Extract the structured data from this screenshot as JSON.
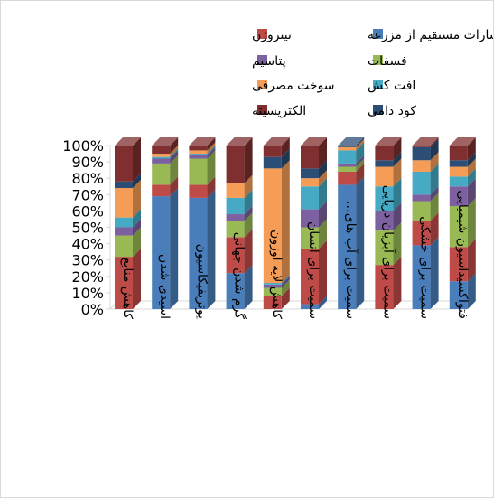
{
  "chart_data": {
    "type": "bar",
    "stacked": true,
    "percent": true,
    "three_d": true,
    "title": "",
    "xlabel": "",
    "ylabel": "",
    "ylim": [
      0,
      100
    ],
    "y_tick_labels": [
      "0%",
      "10%",
      "20%",
      "30%",
      "40%",
      "50%",
      "60%",
      "70%",
      "80%",
      "90%",
      "100%"
    ],
    "categories": [
      "کاهش منابع",
      "اسیدی شدن",
      "یوتریفیکاسیون",
      "گرم شدن جهانی",
      "کاهش لایه اوزون",
      "سمیت برای انسان",
      "سمیت برای آب های…",
      "سمیت برای آبزیان دریایی",
      "سمیت برای خشکی",
      "فتواکسیداسیون شیمیایی"
    ],
    "series": [
      {
        "name": "انتشارات مستقیم از مزرعه",
        "color": "#4a7ebb",
        "values": [
          0,
          69,
          68,
          22,
          0,
          3,
          76,
          0,
          39,
          17
        ]
      },
      {
        "name": "نیتروژن",
        "color": "#be4b48",
        "values": [
          32,
          7,
          8,
          22,
          8,
          34,
          8,
          27,
          15,
          21
        ]
      },
      {
        "name": "فسفات",
        "color": "#98b954",
        "values": [
          13,
          13,
          16,
          10,
          5,
          13,
          3,
          21,
          12,
          25
        ]
      },
      {
        "name": "پتاسیم",
        "color": "#7d60a0",
        "values": [
          5,
          3,
          2,
          4,
          2,
          11,
          2,
          12,
          4,
          12
        ]
      },
      {
        "name": "افت کش",
        "color": "#46aac5",
        "values": [
          6,
          1,
          1,
          10,
          1,
          14,
          8,
          15,
          14,
          6
        ]
      },
      {
        "name": "سوخت مصرفی",
        "color": "#f59d56",
        "values": [
          18,
          2,
          2,
          9,
          70,
          5,
          2,
          12,
          7,
          6
        ]
      },
      {
        "name": "کود دامی",
        "color": "#2c4d75",
        "values": [
          4,
          0,
          0,
          0,
          7,
          6,
          1,
          4,
          8,
          4
        ]
      },
      {
        "name": "الکتریسیته",
        "color": "#7f2f2f",
        "values": [
          22,
          5,
          3,
          23,
          7,
          14,
          0,
          9,
          1,
          9
        ]
      }
    ],
    "grid": false,
    "legend_position": "top"
  }
}
